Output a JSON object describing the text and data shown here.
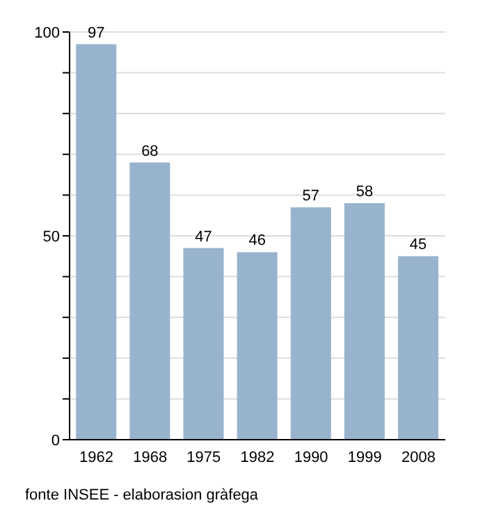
{
  "chart_data": {
    "type": "bar",
    "categories": [
      "1962",
      "1968",
      "1975",
      "1982",
      "1990",
      "1999",
      "2008"
    ],
    "values": [
      97,
      68,
      47,
      46,
      57,
      58,
      45
    ],
    "color": "#98b3cd",
    "data_labels": true,
    "ylim": [
      0,
      100
    ],
    "yticks": [
      0,
      {
        "value": 10,
        "label": null
      },
      {
        "value": 20,
        "label": null
      },
      {
        "value": 30,
        "label": null
      },
      {
        "value": 40,
        "label": null
      },
      50,
      {
        "value": 60,
        "label": null
      },
      {
        "value": 70,
        "label": null
      },
      {
        "value": 80,
        "label": null
      },
      {
        "value": 90,
        "label": null
      },
      100
    ],
    "grid": "y",
    "annotations": [
      "fonte INSEE - elaborasion gràfega"
    ]
  }
}
